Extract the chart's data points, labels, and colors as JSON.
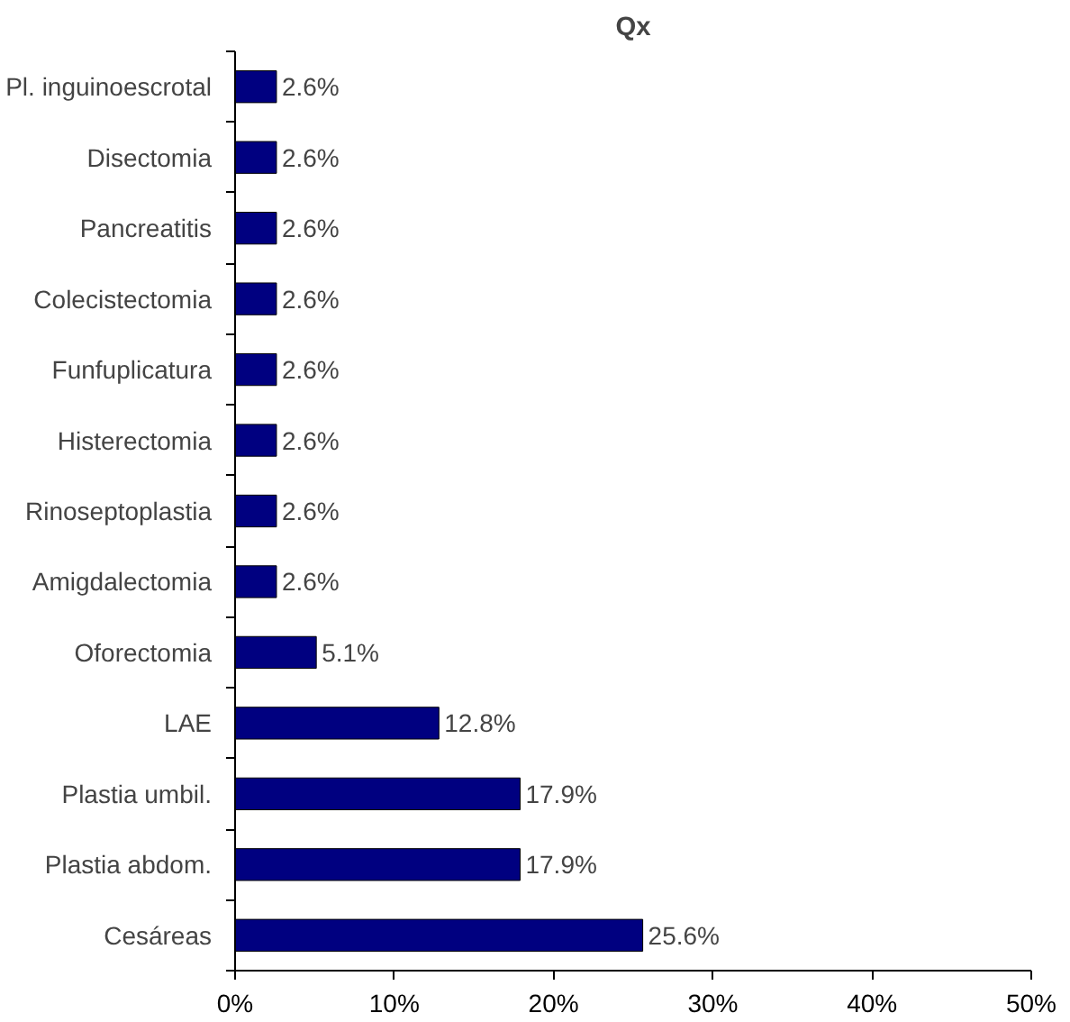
{
  "chart_data": {
    "type": "bar",
    "orientation": "horizontal",
    "title": "Qx",
    "categories": [
      "Pl. inguinoescrotal",
      "Disectomia",
      "Pancreatitis",
      "Colecistectomia",
      "Funfuplicatura",
      "Histerectomia",
      "Rinoseptoplastia",
      "Amigdalectomia",
      "Oforectomia",
      "LAE",
      "Plastia umbil.",
      "Plastia abdom.",
      "Cesáreas"
    ],
    "values": [
      2.6,
      2.6,
      2.6,
      2.6,
      2.6,
      2.6,
      2.6,
      2.6,
      5.1,
      12.8,
      17.9,
      17.9,
      25.6
    ],
    "value_labels": [
      "2.6%",
      "2.6%",
      "2.6%",
      "2.6%",
      "2.6%",
      "2.6%",
      "2.6%",
      "2.6%",
      "5.1%",
      "12.8%",
      "17.9%",
      "17.9%",
      "25.6%"
    ],
    "color": "#000080",
    "xlim": [
      0,
      50
    ],
    "xticks": [
      {
        "value": 0,
        "label": "0%"
      },
      {
        "value": 10,
        "label": "10%"
      },
      {
        "value": 20,
        "label": "20%"
      },
      {
        "value": 30,
        "label": "30%"
      },
      {
        "value": 40,
        "label": "40%"
      },
      {
        "value": 50,
        "label": "50%"
      }
    ],
    "grid": false
  }
}
